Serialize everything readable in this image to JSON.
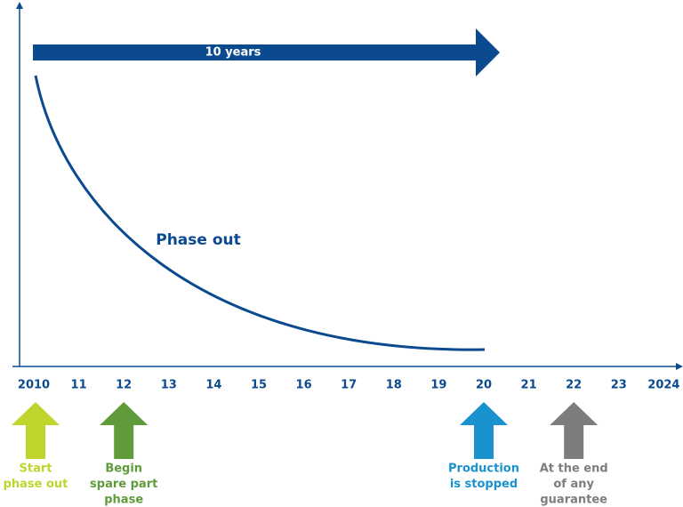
{
  "timeline_arrow": {
    "label": "10 years"
  },
  "curve": {
    "label": "Phase out"
  },
  "axis": {
    "labels": [
      "2010",
      "11",
      "12",
      "13",
      "14",
      "15",
      "16",
      "17",
      "18",
      "19",
      "20",
      "21",
      "22",
      "23",
      "2024"
    ]
  },
  "milestones": [
    {
      "lines": [
        "Start",
        "phase out"
      ]
    },
    {
      "lines": [
        "Begin",
        "spare part",
        "phase"
      ]
    },
    {
      "lines": [
        "Production",
        "is stopped"
      ]
    },
    {
      "lines": [
        "At the end",
        "of any",
        "guarantee"
      ]
    }
  ]
}
